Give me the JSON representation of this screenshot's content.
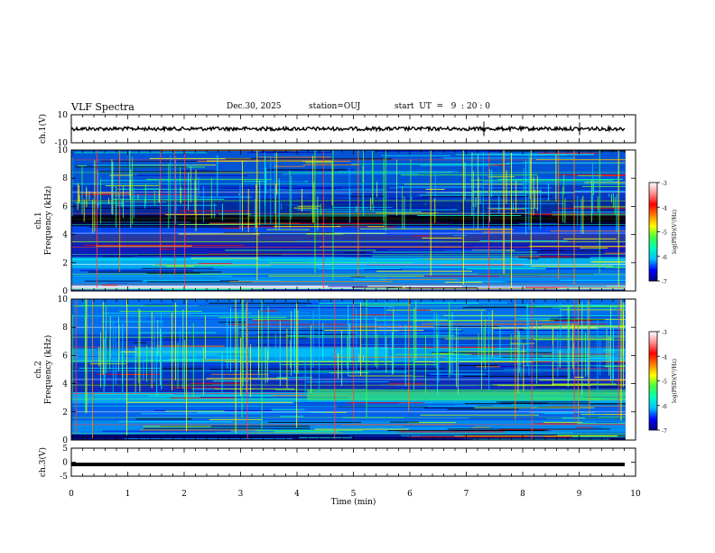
{
  "header": {
    "title": "VLF Spectra",
    "date": "Dec.30, 2025",
    "station": "station=OUJ",
    "start": "start  UT  =   9  : 20 : 0"
  },
  "chart_data": {
    "type": "heatmap",
    "x_axis": {
      "label": "Time  (min)",
      "range": [
        0,
        10
      ],
      "ticks": [
        "0",
        "1",
        "2",
        "3",
        "4",
        "5",
        "6",
        "7",
        "8",
        "9",
        "10"
      ]
    },
    "panels": [
      {
        "name": "ch.1(V)",
        "kind": "waveform",
        "ylabel": "ch.1(V)",
        "ylim": [
          -10,
          10
        ],
        "yticks": [
          "10",
          "-10"
        ],
        "level": 0
      },
      {
        "name": "ch.1 spectrogram",
        "kind": "spectrogram",
        "ylabel_line1": "ch.1",
        "ylabel_line2": "Frequency  (kHz)",
        "ylim": [
          0,
          10
        ],
        "yticks": [
          "0",
          "2",
          "4",
          "6",
          "8",
          "10"
        ]
      },
      {
        "name": "ch.2 spectrogram",
        "kind": "spectrogram",
        "ylabel_line1": "ch.2",
        "ylabel_line2": "Frequency  (kHz)",
        "ylim": [
          0,
          10
        ],
        "yticks": [
          "0",
          "2",
          "4",
          "6",
          "8",
          "10"
        ]
      },
      {
        "name": "ch.3(V)",
        "kind": "waveform",
        "ylabel": "ch.3(V)",
        "ylim": [
          -5,
          5
        ],
        "yticks": [
          "5",
          "0",
          "-5"
        ],
        "level": -0.8
      }
    ],
    "colorbar": {
      "label": "log(PSD)(V²/Hz)",
      "range": [
        -7,
        -3
      ],
      "ticks": [
        "-3",
        "-4",
        "-5",
        "-6",
        "-7"
      ],
      "colormap": [
        "#000080",
        "#0000ff",
        "#00bfff",
        "#00ffbf",
        "#40ff40",
        "#ffff00",
        "#ff8000",
        "#ff0000",
        "#ff9090",
        "#ffffff"
      ]
    },
    "colors": {
      "background": "#0a1a8a",
      "waveform": "#000000",
      "axes": "#000000"
    }
  }
}
